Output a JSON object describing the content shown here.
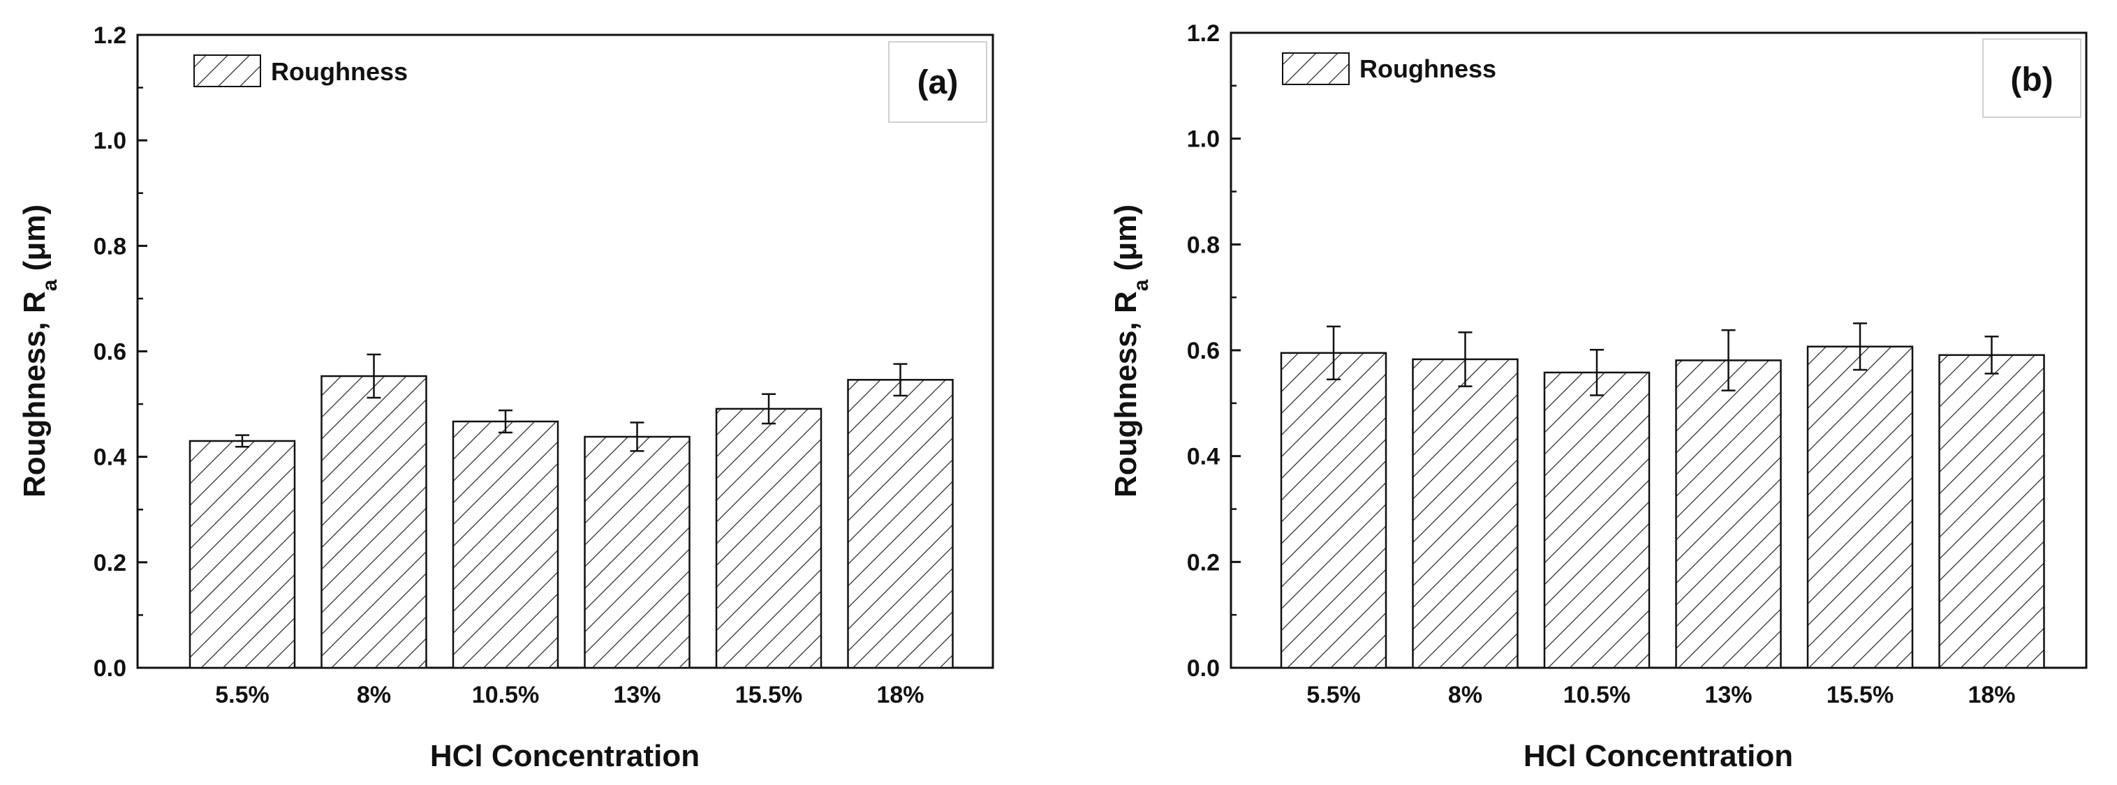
{
  "colors": {
    "ink": "#111111",
    "background": "#ffffff"
  },
  "chart_data": [
    {
      "type": "bar",
      "panel_label": "(a)",
      "categories": [
        "5.5%",
        "8%",
        "10.5%",
        "13%",
        "15.5%",
        "18%"
      ],
      "series": [
        {
          "name": "Roughness",
          "values": [
            0.43,
            0.553,
            0.467,
            0.438,
            0.491,
            0.546
          ],
          "errors": [
            0.011,
            0.041,
            0.021,
            0.027,
            0.028,
            0.03
          ]
        }
      ],
      "xlabel": "HCl Concentration",
      "ylabel_main": "Roughness, R",
      "ylabel_sub": "a",
      "ylabel_unit": " (μm)",
      "ylim": [
        0,
        1.2
      ],
      "yticks": [
        "0.0",
        "0.2",
        "0.4",
        "0.6",
        "0.8",
        "1.0",
        "1.2"
      ],
      "legend": {
        "label": "Roughness",
        "position": "top-left"
      }
    },
    {
      "type": "bar",
      "panel_label": "(b)",
      "categories": [
        "5.5%",
        "8%",
        "10.5%",
        "13%",
        "15.5%",
        "18%"
      ],
      "series": [
        {
          "name": "Roughness",
          "values": [
            0.595,
            0.583,
            0.558,
            0.581,
            0.607,
            0.591
          ],
          "errors": [
            0.05,
            0.051,
            0.043,
            0.057,
            0.044,
            0.035
          ]
        }
      ],
      "xlabel": "HCl Concentration",
      "ylabel_main": "Roughness, R",
      "ylabel_sub": "a",
      "ylabel_unit": " (μm)",
      "ylim": [
        0,
        1.2
      ],
      "yticks": [
        "0.0",
        "0.2",
        "0.4",
        "0.6",
        "0.8",
        "1.0",
        "1.2"
      ],
      "legend": {
        "label": "Roughness",
        "position": "top-left"
      }
    }
  ]
}
